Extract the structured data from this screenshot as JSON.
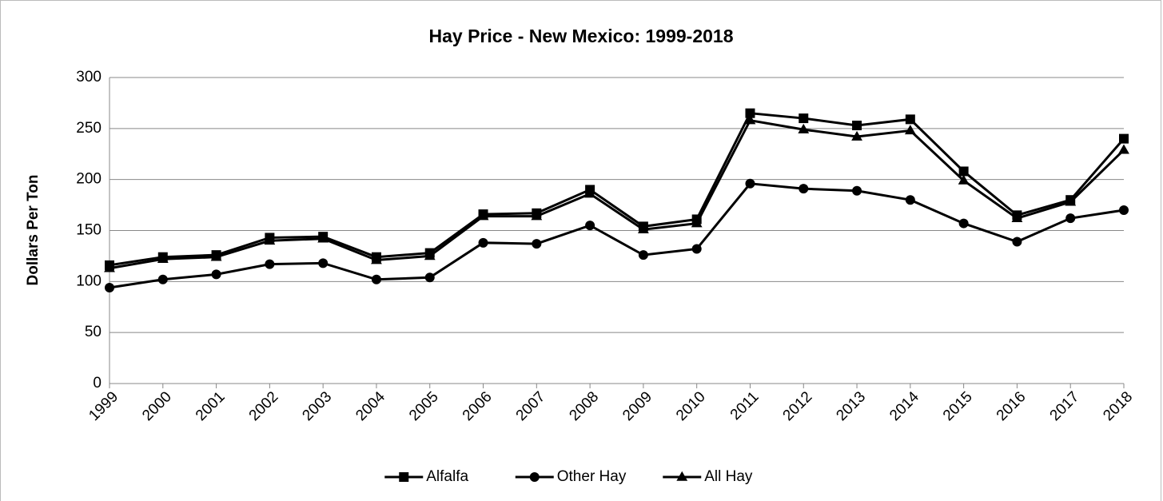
{
  "chart_data": {
    "type": "line",
    "title": "Hay Price - New Mexico:  1999-2018",
    "y_label": "Dollars Per Ton",
    "categories": [
      "1999",
      "2000",
      "2001",
      "2002",
      "2003",
      "2004",
      "2005",
      "2006",
      "2007",
      "2008",
      "2009",
      "2010",
      "2011",
      "2012",
      "2013",
      "2014",
      "2015",
      "2016",
      "2017",
      "2018"
    ],
    "series": [
      {
        "name": "Alfalfa",
        "color": "#000000",
        "marker": "square",
        "values": [
          116,
          124,
          126,
          143,
          144,
          124,
          128,
          166,
          167,
          190,
          154,
          161,
          265,
          260,
          253,
          259,
          208,
          165,
          180,
          240
        ]
      },
      {
        "name": "Other Hay",
        "color": "#000000",
        "marker": "circle",
        "values": [
          94,
          102,
          107,
          117,
          118,
          102,
          104,
          138,
          137,
          155,
          126,
          132,
          196,
          191,
          189,
          180,
          157,
          139,
          162,
          170
        ]
      },
      {
        "name": "All Hay",
        "color": "#000000",
        "marker": "triangle",
        "values": [
          113,
          122,
          124,
          140,
          142,
          121,
          125,
          164,
          164,
          186,
          151,
          157,
          258,
          249,
          242,
          248,
          199,
          162,
          178,
          229
        ]
      }
    ],
    "ylim": [
      0,
      300
    ],
    "yticks": [
      0,
      50,
      100,
      150,
      200,
      250,
      300
    ],
    "grid": true,
    "legend": "bottom"
  }
}
